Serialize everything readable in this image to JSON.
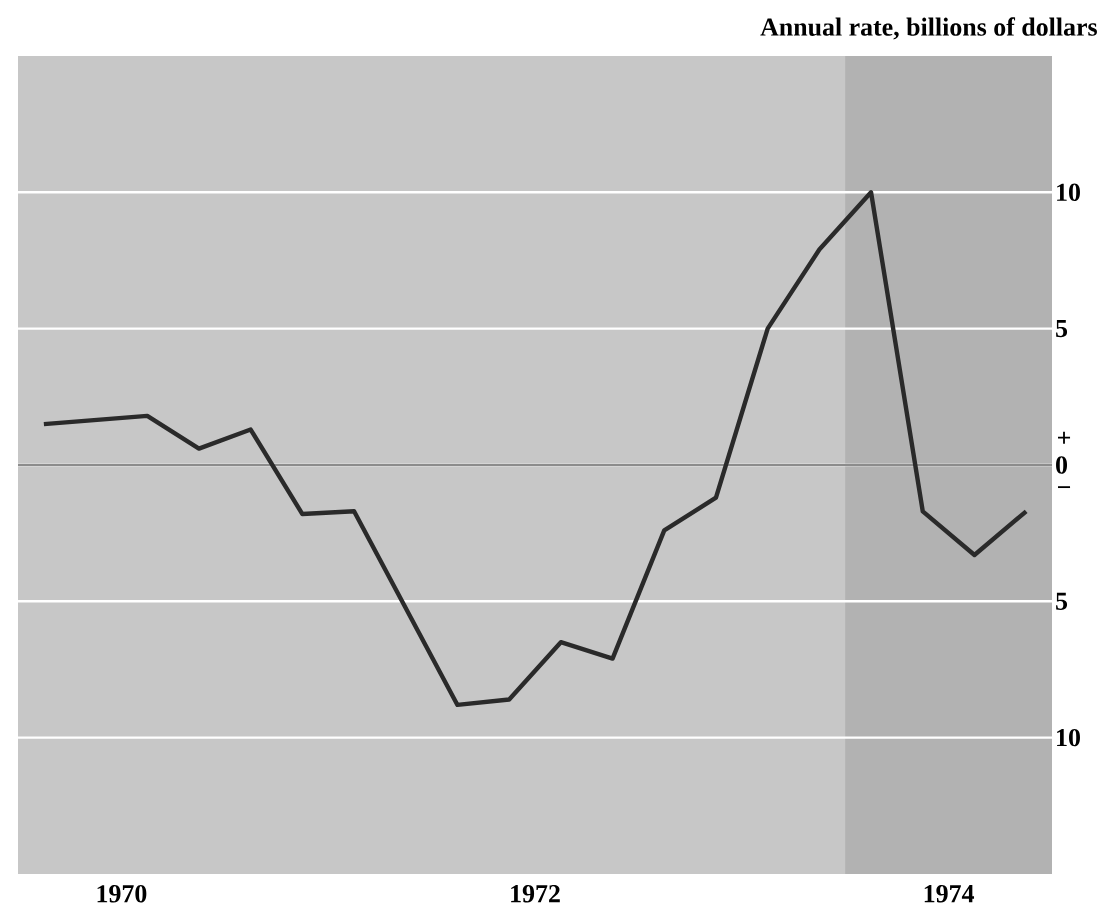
{
  "chart_data": {
    "type": "line",
    "ylabel": "Annual rate, billions of dollars",
    "x": [
      1970.125,
      1970.625,
      1970.875,
      1971.125,
      1971.375,
      1971.625,
      1972.125,
      1972.375,
      1972.625,
      1972.875,
      1973.125,
      1973.375,
      1973.625,
      1973.875,
      1974.125,
      1974.375,
      1974.625,
      1974.875
    ],
    "series": [
      {
        "color": "#2a2a2a",
        "values": [
          1.5,
          1.8,
          0.6,
          1.3,
          -1.8,
          -1.7,
          -8.8,
          -8.6,
          -6.5,
          -7.1,
          -2.4,
          -1.2,
          5.0,
          7.9,
          10.0,
          -1.7,
          -3.3,
          -1.7
        ]
      }
    ],
    "xlim": [
      1970,
      1975
    ],
    "xticks": [
      {
        "value": 1970.5,
        "label": "1970"
      },
      {
        "value": 1971,
        "label": null
      },
      {
        "value": 1972,
        "label": null
      },
      {
        "value": 1972.5,
        "label": "1972"
      },
      {
        "value": 1973,
        "label": null
      },
      {
        "value": 1974,
        "label": null
      },
      {
        "value": 1974.5,
        "label": "1974"
      }
    ],
    "ylim": [
      -15,
      15
    ],
    "yticks": [
      {
        "value": -10,
        "label": "10"
      },
      {
        "value": -5,
        "label": "5"
      },
      0,
      5,
      10
    ],
    "grid": "y",
    "marker": "none",
    "line_style": "solid",
    "ref_lines": [
      {
        "axis": "y",
        "value": 0,
        "label": null,
        "color": "#8c8c8c"
      }
    ],
    "bands": [
      {
        "axis": "x",
        "from": 1974,
        "to": 1975,
        "label": null,
        "color": "#b2b2b2"
      }
    ],
    "annotations": [
      "+",
      "−"
    ]
  }
}
